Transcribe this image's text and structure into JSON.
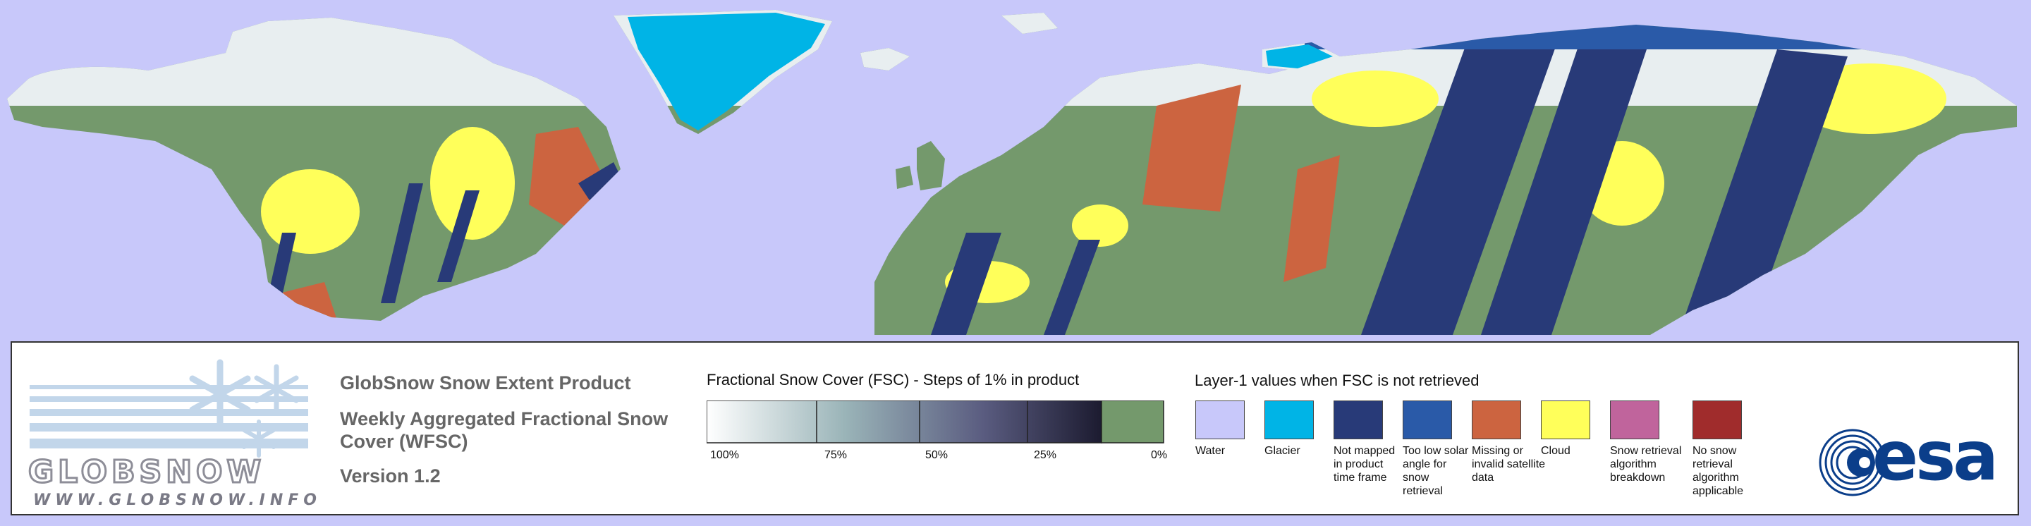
{
  "header": {
    "title": "GlobSnow Snow Extent Product",
    "subtitle": "Weekly Aggregated Fractional Snow Cover (WFSC)",
    "version": "Version 1.2"
  },
  "logo": {
    "wordmark": "GLOBSNOW",
    "url": "WWW.GLOBSNOW.INFO"
  },
  "fsc_legend": {
    "title": "Fractional Snow Cover (FSC) - Steps of 1% in product",
    "ticks": [
      "100%",
      "75%",
      "50%",
      "25%",
      "0%"
    ],
    "gradient_start": "#ffffff",
    "gradient_end": "#1c1b30",
    "zero_color": "#74996c"
  },
  "layer1_legend": {
    "title": "Layer-1 values when FSC is not retrieved",
    "items": [
      {
        "label": "Water",
        "color": "#c8c8fa"
      },
      {
        "label": "Glacier",
        "color": "#00b4e6"
      },
      {
        "label": "Not mapped in product time frame",
        "color": "#283a78"
      },
      {
        "label": "Too low solar angle for snow retrieval",
        "color": "#2a5aa8"
      },
      {
        "label": "Missing or invalid satellite data",
        "color": "#cc6440"
      },
      {
        "label": "Cloud",
        "color": "#ffff5a"
      },
      {
        "label": "Snow retrieval algorithm breakdown",
        "color": "#c0649c"
      },
      {
        "label": "No snow retrieval algorithm applicable",
        "color": "#a02c2c"
      }
    ]
  },
  "agency_logo": {
    "text": "esa",
    "color": "#0b3e8a"
  },
  "map": {
    "colors": {
      "water": "#c8c8fa",
      "snow_free": "#74996c",
      "snow": "#ffffff",
      "glacier": "#00b4e6",
      "not_mapped": "#283a78",
      "low_solar": "#2a5aa8",
      "missing": "#cc6440",
      "cloud": "#ffff5a"
    }
  }
}
